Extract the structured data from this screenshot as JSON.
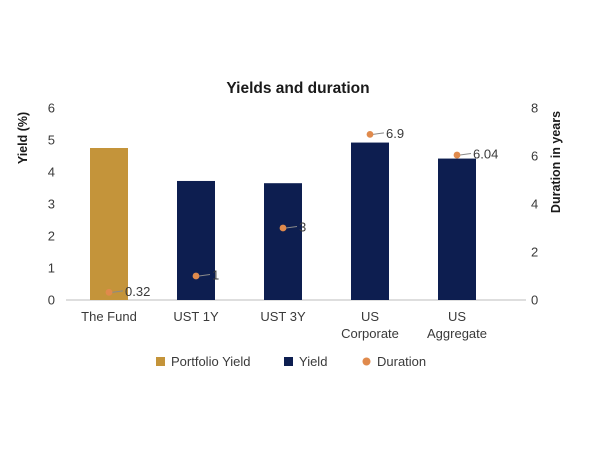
{
  "chart_data": {
    "type": "bar",
    "title": "Yields and duration",
    "ylabel": "Yield (%)",
    "y2label": "Duration in years",
    "ylim": [
      0,
      6
    ],
    "y2lim": [
      0,
      8
    ],
    "yticks": [
      "0",
      "1",
      "2",
      "3",
      "4",
      "5",
      "6"
    ],
    "y2ticks": [
      "0",
      "2",
      "4",
      "6",
      "8"
    ],
    "categories": [
      [
        "The Fund"
      ],
      [
        "UST 1Y"
      ],
      [
        "UST 3Y"
      ],
      [
        "US",
        "Corporate"
      ],
      [
        "US",
        "Aggregate"
      ]
    ],
    "series": [
      {
        "name": "Portfolio Yield",
        "kind": "bar",
        "color": "#C4943A",
        "values": [
          4.75,
          null,
          null,
          null,
          null
        ]
      },
      {
        "name": "Yield",
        "kind": "bar",
        "color": "#0D1E50",
        "values": [
          null,
          3.72,
          3.65,
          4.92,
          4.42
        ]
      },
      {
        "name": "Duration",
        "kind": "scatter",
        "axis": "right",
        "color": "#E08A4C",
        "values": [
          0.32,
          1,
          3,
          6.9,
          6.04
        ],
        "labels": [
          "0.32",
          "1",
          "3",
          "6.9",
          "6.04"
        ]
      }
    ],
    "grid": false,
    "legend_position": "bottom"
  }
}
